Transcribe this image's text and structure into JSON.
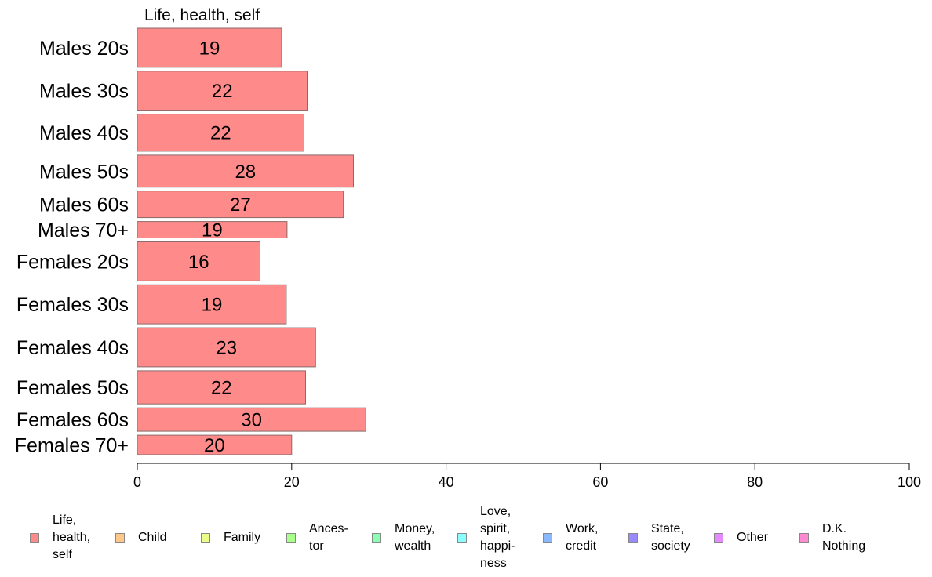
{
  "chart_data": {
    "type": "bar",
    "orientation": "horizontal",
    "series_title": "Life, health, self",
    "categories": [
      "Males 20s",
      "Males 30s",
      "Males 40s",
      "Males 50s",
      "Males 60s",
      "Males 70+",
      "Females 20s",
      "Females 30s",
      "Females 40s",
      "Females 50s",
      "Females 60s",
      "Females 70+"
    ],
    "values": [
      18.7,
      22.0,
      21.6,
      28.0,
      26.7,
      19.4,
      15.9,
      19.3,
      23.1,
      21.8,
      29.6,
      20.0
    ],
    "value_labels": [
      "19",
      "22",
      "22",
      "28",
      "27",
      "19",
      "16",
      "19",
      "23",
      "22",
      "30",
      "20"
    ],
    "group_weights": [
      1.0,
      1.0,
      0.95,
      0.82,
      0.68,
      0.42,
      1.0,
      1.0,
      1.0,
      0.85,
      0.6,
      0.5
    ],
    "xlim": [
      0,
      100
    ],
    "xticks": [
      "0",
      "20",
      "40",
      "60",
      "80",
      "100"
    ],
    "xlabel": "",
    "ylabel": "",
    "grid": false,
    "bar_color": "#ff8a8a",
    "bar_border": "#8a6a6a",
    "legend_position": "bottom",
    "legend": [
      {
        "label": "Life,\nhealth,\nself",
        "color": "#ff8a8a"
      },
      {
        "label": "Child",
        "color": "#ffc78a"
      },
      {
        "label": "Family",
        "color": "#eaff8a"
      },
      {
        "label": "Ances-\ntor",
        "color": "#a8ff8a"
      },
      {
        "label": "Money,\nwealth",
        "color": "#8affb4"
      },
      {
        "label": "Love,\nspirit,\nhappi-\nness",
        "color": "#8affff"
      },
      {
        "label": "Work,\ncredit",
        "color": "#8ab8ff"
      },
      {
        "label": "State,\nsociety",
        "color": "#9a8aff"
      },
      {
        "label": "Other",
        "color": "#e88aff"
      },
      {
        "label": "D.K.\nNothing",
        "color": "#ff8ad2"
      }
    ]
  }
}
